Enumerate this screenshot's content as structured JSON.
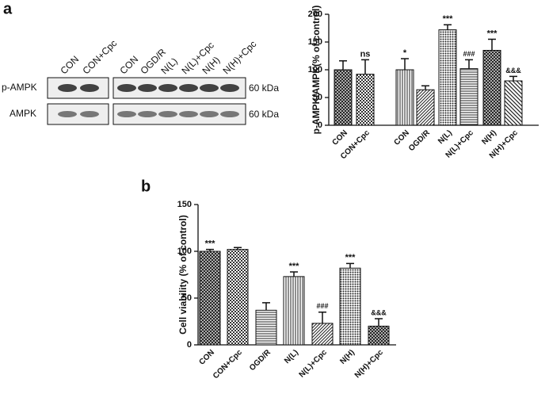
{
  "panel_labels": [
    "a",
    "b"
  ],
  "blot": {
    "lanes": [
      "CON",
      "CON+Cpc",
      "CON",
      "OGD/R",
      "N(L)",
      "N(L)+Cpc",
      "N(H)",
      "N(H)+Cpc"
    ],
    "rows": [
      "p-AMPK",
      "AMPK"
    ],
    "sizes": [
      "60 kDa",
      "60 kDa"
    ]
  },
  "chart_data": [
    {
      "type": "bar",
      "ylabel": "p-AMPK/AMPK(% of control)",
      "categories": [
        "CON",
        "CON+Cpc",
        "CON",
        "OGD/R",
        "N(L)",
        "N(L)+Cpc",
        "N(H)",
        "N(H)+Cpc"
      ],
      "values": [
        100,
        92,
        100,
        64,
        172,
        102,
        135,
        80
      ],
      "errors": [
        16,
        26,
        20,
        7,
        9,
        16,
        20,
        8
      ],
      "annotations": [
        null,
        "ns",
        "*",
        null,
        "***",
        "###",
        "***",
        "&&&"
      ],
      "patterns": [
        "crosshatch",
        "checker",
        "vertical",
        "diagonal-right",
        "dots",
        "horizontal",
        "crosshatch",
        "diagonal-left"
      ],
      "ylim": [
        0,
        200
      ],
      "yticks": [
        0,
        50,
        100,
        150,
        200
      ]
    },
    {
      "type": "bar",
      "ylabel": "Cell viability (% of control)",
      "categories": [
        "CON",
        "CON+Cpc",
        "OGD/R",
        "N(L)",
        "N(L)+Cpc",
        "N(H)",
        "N(H)+Cpc"
      ],
      "values": [
        100,
        102,
        37,
        73,
        23,
        82,
        20
      ],
      "errors": [
        2,
        2,
        8,
        5,
        12,
        5,
        8
      ],
      "annotations": [
        "***",
        null,
        null,
        "***",
        "###",
        "***",
        "&&&"
      ],
      "patterns": [
        "crosshatch",
        "checker",
        "horizontal",
        "vertical",
        "diagonal-right",
        "dots",
        "crosshatch"
      ],
      "ylim": [
        0,
        150
      ],
      "yticks": [
        0,
        50,
        100,
        150
      ]
    }
  ]
}
